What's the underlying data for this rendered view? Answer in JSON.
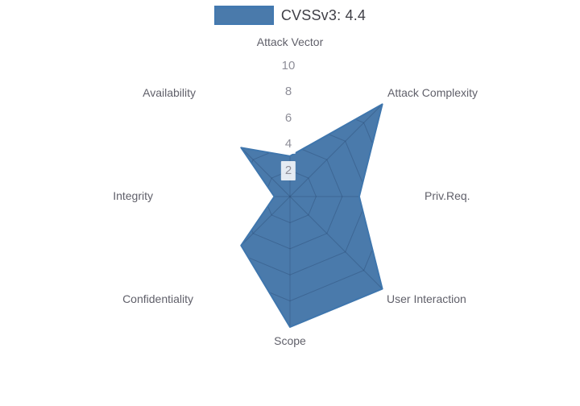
{
  "legend": {
    "label": "CVSSv3: 4.4",
    "swatch_fill": "#4a7aab",
    "swatch_line": "#4379b0",
    "label_color": "#3f3f46"
  },
  "chart_data": {
    "type": "radar",
    "title": "CVSSv3: 4.4",
    "categories": [
      "Attack Vector",
      "Attack Complexity",
      "Priv.Req.",
      "User Interaction",
      "Scope",
      "Confidentiality",
      "Integrity",
      "Availability"
    ],
    "series": [
      {
        "name": "CVSSv3: 4.4",
        "values": [
          3.1,
          10,
          5.3,
          10,
          10,
          5.3,
          1.2,
          5.3
        ]
      }
    ],
    "ticks": [
      2,
      4,
      6,
      8,
      10
    ],
    "rlim": [
      0,
      10
    ],
    "grid": "on",
    "legend_position": "top-center",
    "fill_color": "#4a7aab",
    "line_color": "#3f76ad",
    "grid_color": "rgba(38,67,107,0.35)",
    "tick_text_color": "#8f8f99",
    "label_color": "#60606a"
  }
}
